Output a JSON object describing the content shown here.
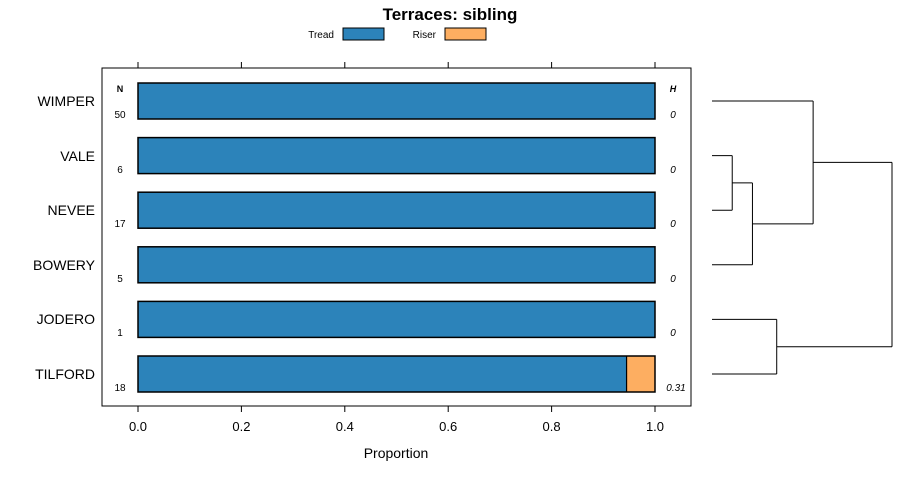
{
  "chart_data": {
    "type": "bar",
    "stacked": true,
    "orientation": "horizontal",
    "title": "Terraces: sibling",
    "xlabel": "Proportion",
    "ylabel": "",
    "xlim": [
      0,
      1
    ],
    "x_ticks": [
      "0.0",
      "0.2",
      "0.4",
      "0.6",
      "0.8",
      "1.0"
    ],
    "categories": [
      "WIMPER",
      "VALE",
      "NEVEE",
      "BOWERY",
      "JODERO",
      "TILFORD"
    ],
    "series": [
      {
        "name": "Tread",
        "color": "#2c83ba",
        "values": [
          1.0,
          1.0,
          1.0,
          1.0,
          1.0,
          0.945
        ]
      },
      {
        "name": "Riser",
        "color": "#fdae61",
        "values": [
          0.0,
          0.0,
          0.0,
          0.0,
          0.0,
          0.055
        ]
      }
    ],
    "n_header": "N",
    "h_header": "H",
    "n_values": [
      "50",
      "6",
      "17",
      "5",
      "1",
      "18"
    ],
    "h_values": [
      "0",
      "0",
      "0",
      "0",
      "0",
      "0.31"
    ],
    "legend": [
      "Tread",
      "Riser"
    ],
    "legend_position": "top",
    "dendrogram": {
      "leaf_order": [
        "WIMPER",
        "VALE",
        "NEVEE",
        "BOWERY",
        "JODERO",
        "TILFORD"
      ],
      "merges": [
        {
          "a": "VALE",
          "b": "NEVEE",
          "height": 1
        },
        {
          "a": "VALE+NEVEE",
          "b": "BOWERY",
          "height": 2
        },
        {
          "a": "WIMPER",
          "b": "VALE+NEVEE+BOWERY",
          "height": 5
        },
        {
          "a": "JODERO",
          "b": "TILFORD",
          "height": 3.2
        },
        {
          "a": "top",
          "b": "bottom",
          "height": 8.9
        }
      ]
    }
  }
}
